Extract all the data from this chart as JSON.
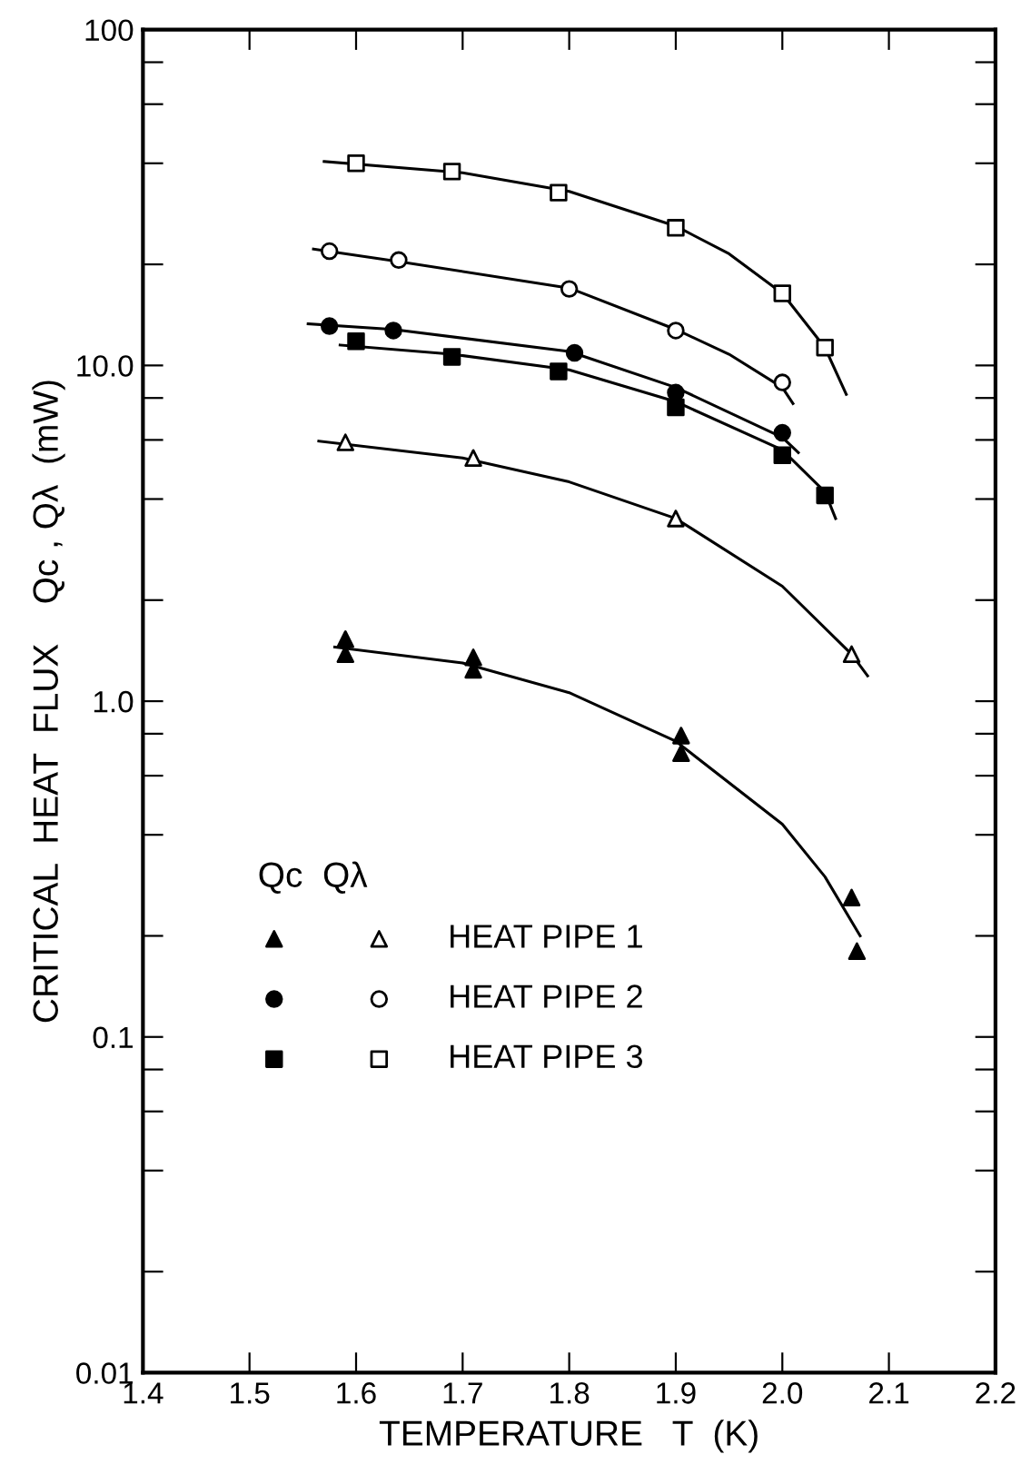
{
  "chart_data": {
    "type": "scatter",
    "xlabel": "TEMPERATURE   T  (K)",
    "ylabel": "CRITICAL  HEAT  FLUX    Qc , Qλ  (mW)",
    "legend_title": "Qc  Qλ",
    "log": "y",
    "legend": "bottom left",
    "grid": false,
    "xlim": [
      1.4,
      2.2
    ],
    "xticks": [
      1.4,
      1.5,
      1.6,
      1.7,
      1.8,
      1.9,
      {
        "value": 2,
        "label": "2.0"
      },
      2.1,
      2.2
    ],
    "ylim": [
      0.01,
      100
    ],
    "yticks": [
      {
        "value": 0.01,
        "label": "0.01"
      },
      {
        "value": 0.02,
        "label": null
      },
      {
        "value": 0.04,
        "label": null
      },
      {
        "value": 0.06,
        "label": null
      },
      {
        "value": 0.08,
        "label": null
      },
      {
        "value": 0.1,
        "label": "0.1"
      },
      {
        "value": 0.2,
        "label": null
      },
      {
        "value": 0.4,
        "label": null
      },
      {
        "value": 0.6,
        "label": null
      },
      {
        "value": 0.8,
        "label": null
      },
      {
        "value": 1,
        "label": "1.0"
      },
      {
        "value": 2,
        "label": null
      },
      {
        "value": 4,
        "label": null
      },
      {
        "value": 6,
        "label": null
      },
      {
        "value": 8,
        "label": null
      },
      {
        "value": 10,
        "label": "10.0"
      },
      {
        "value": 20,
        "label": null
      },
      {
        "value": 40,
        "label": null
      },
      {
        "value": 60,
        "label": null
      },
      {
        "value": 80,
        "label": null
      },
      {
        "value": 100,
        "label": "100"
      }
    ],
    "series": [
      {
        "marker": "triangle",
        "color": "#000000",
        "x": [
          1.59,
          1.59,
          1.71,
          1.71,
          1.905,
          1.905,
          2.065,
          2.07
        ],
        "values": [
          1.53,
          1.38,
          1.35,
          1.24,
          0.79,
          0.7,
          0.26,
          0.18
        ]
      },
      {
        "name": "HEAT PIPE 1",
        "marker": "triangle",
        "color": "#ffffff",
        "x": [
          1.59,
          1.71,
          1.9,
          2.065
        ],
        "values": [
          5.9,
          5.3,
          3.5,
          1.38
        ]
      },
      {
        "marker": "circle",
        "color": "#000000",
        "x": [
          1.575,
          1.635,
          1.805,
          1.9,
          2.0
        ],
        "values": [
          13.1,
          12.7,
          10.9,
          8.3,
          6.3
        ]
      },
      {
        "name": "HEAT PIPE 2",
        "marker": "circle",
        "color": "#ffffff",
        "x": [
          1.575,
          1.64,
          1.8,
          1.9,
          2.0
        ],
        "values": [
          21.9,
          20.6,
          16.9,
          12.7,
          8.9
        ]
      },
      {
        "marker": "square",
        "color": "#000000",
        "x": [
          1.6,
          1.69,
          1.79,
          1.9,
          2.0,
          2.04
        ],
        "values": [
          11.8,
          10.6,
          9.6,
          7.5,
          5.4,
          4.1
        ]
      },
      {
        "name": "HEAT PIPE 3",
        "marker": "square",
        "color": "#ffffff",
        "x": [
          1.6,
          1.69,
          1.79,
          1.9,
          2.0,
          2.04
        ],
        "values": [
          40,
          37.8,
          32.7,
          25.7,
          16.4,
          11.3
        ]
      },
      {
        "type": "line",
        "marker": "none",
        "color": "#000000",
        "x": [
          1.58,
          1.7,
          1.8,
          1.9,
          2.0,
          2.04,
          2.073
        ],
        "values": [
          1.45,
          1.3,
          1.06,
          0.76,
          0.43,
          0.3,
          0.2
        ]
      },
      {
        "type": "line",
        "marker": "none",
        "color": "#000000",
        "x": [
          1.565,
          1.7,
          1.8,
          1.9,
          2.0,
          2.065,
          2.08
        ],
        "values": [
          5.95,
          5.3,
          4.5,
          3.5,
          2.2,
          1.38,
          1.19
        ]
      },
      {
        "type": "line",
        "marker": "none",
        "color": "#000000",
        "x": [
          1.555,
          1.635,
          1.8,
          1.9,
          2.0,
          2.015
        ],
        "values": [
          13.3,
          12.8,
          11,
          8.6,
          6.1,
          5.5
        ]
      },
      {
        "type": "line",
        "marker": "none",
        "color": "#000000",
        "x": [
          1.56,
          1.64,
          1.8,
          1.9,
          1.95,
          2.0,
          2.01
        ],
        "values": [
          22.2,
          20.4,
          17,
          12.8,
          10.8,
          8.6,
          7.7
        ]
      },
      {
        "type": "line",
        "marker": "none",
        "color": "#000000",
        "x": [
          1.585,
          1.69,
          1.8,
          1.9,
          2.0,
          2.04,
          2.05
        ],
        "values": [
          11.5,
          10.8,
          9.7,
          7.8,
          5.6,
          4.2,
          3.5
        ]
      },
      {
        "type": "line",
        "marker": "none",
        "color": "#000000",
        "x": [
          1.57,
          1.7,
          1.8,
          1.9,
          1.95,
          2.0,
          2.04,
          2.06
        ],
        "values": [
          40.5,
          37.5,
          33,
          26,
          21.5,
          16.4,
          11.3,
          8.2
        ]
      }
    ]
  }
}
